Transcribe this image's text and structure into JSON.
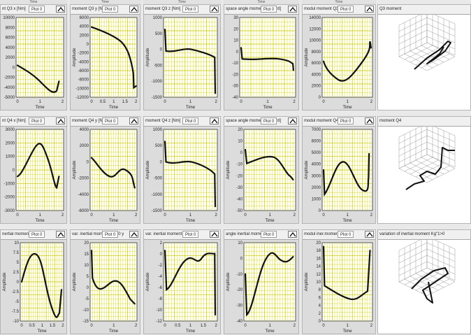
{
  "top_strip": [
    "Time",
    "Time",
    "Time",
    "Time",
    "Time"
  ],
  "plot_button_default": "Plot 0",
  "panels": [
    {
      "id": "q3x",
      "title": "nt Q3 x [Nm]",
      "plot": "Plot 0",
      "xlabel": "Time",
      "ylabel": "",
      "yticks": [
        "10000",
        "8000",
        "6000",
        "4000",
        "2000",
        "0",
        "-2000",
        "-4000",
        "-5000"
      ],
      "xticks": [
        "0",
        "1",
        "2"
      ]
    },
    {
      "id": "q3y",
      "title": "moment Q3 y [Nm]",
      "plot": "Plot 0",
      "xlabel": "Time",
      "ylabel": "Amplitude",
      "yticks": [
        "6000",
        "4000",
        "2000",
        "0",
        "-2000",
        "-4000",
        "-6000",
        "-8000",
        "-10000",
        "-12000"
      ],
      "xticks": [
        "0",
        "0.5",
        "1",
        "1.5",
        "2"
      ]
    },
    {
      "id": "q3z",
      "title": "moment Q3 z [Nm]",
      "plot": "Plot 0",
      "xlabel": "Time",
      "ylabel": "Amplitude",
      "yticks": [
        "1000",
        "500",
        "0",
        "-500",
        "-1000",
        "-1500"
      ],
      "xticks": [
        "0",
        "1",
        "2"
      ]
    },
    {
      "id": "q3ang",
      "title": "space angle moment Q3 [grd]",
      "plot": "Plot 0",
      "xlabel": "Time",
      "ylabel": "",
      "yticks": [
        "30",
        "20",
        "10",
        "0",
        "-10",
        "-20",
        "-30",
        "-40"
      ],
      "xticks": [
        "0",
        "1",
        "2"
      ]
    },
    {
      "id": "q3mod",
      "title": "modul moment Q3 [Nm]",
      "plot": "Plot 0",
      "xlabel": "Time",
      "ylabel": "Amplitude",
      "yticks": [
        "14000",
        "12000",
        "10000",
        "8000",
        "6000",
        "4000",
        "2000",
        "0"
      ],
      "xticks": [
        "0",
        "1",
        "2"
      ]
    },
    {
      "id": "q4x",
      "title": "nt Q4 x [Nm]",
      "plot": "Plot 0",
      "xlabel": "Time",
      "ylabel": "",
      "yticks": [
        "3000",
        "2000",
        "1000",
        "0",
        "-1000",
        "-2000",
        "-3000"
      ],
      "xticks": [
        "0",
        "1",
        "2"
      ]
    },
    {
      "id": "q4y",
      "title": "moment Q4 y [Nm]",
      "plot": "Plot 0",
      "xlabel": "Time",
      "ylabel": "Amplitude",
      "yticks": [
        "4000",
        "2000",
        "0",
        "-2000",
        "-4000",
        "-6000"
      ],
      "xticks": [
        "0",
        "1",
        "2"
      ]
    },
    {
      "id": "q4z",
      "title": "moment Q4 z [Nm]",
      "plot": "Plot 0",
      "xlabel": "Time",
      "ylabel": "Amplitude",
      "yticks": [
        "1000",
        "500",
        "0",
        "-500",
        "-1000",
        "-1500"
      ],
      "xticks": [
        "0",
        "1",
        "2"
      ]
    },
    {
      "id": "q4ang",
      "title": "space angle moment Q4 [grd]",
      "plot": "Plot 0",
      "xlabel": "Time",
      "ylabel": "Amplitude",
      "yticks": [
        "20",
        "10",
        "0",
        "-10",
        "-20",
        "-30",
        "-40",
        "-50"
      ],
      "xticks": [
        "0",
        "1",
        "2"
      ]
    },
    {
      "id": "q4mod",
      "title": "modul moment Q4 [Nm]",
      "plot": "Plot 0",
      "xlabel": "Time",
      "ylabel": "Amplitude",
      "yticks": [
        "7000",
        "6000",
        "5000",
        "4000",
        "3000",
        "2000",
        "1000",
        "0"
      ],
      "xticks": [
        "0",
        "1",
        "2"
      ]
    },
    {
      "id": "kx",
      "title": "nertial moment Kgi>0 x",
      "plot": "Plot 0",
      "xlabel": "Time",
      "ylabel": "Amplitude",
      "yticks": [
        "10",
        "7.5",
        "5",
        "2.5",
        "0",
        "-2.5",
        "-5",
        "-7.5",
        "-10"
      ],
      "xticks": [
        "0",
        "0.5",
        "1",
        "1.5",
        "2"
      ]
    },
    {
      "id": "ky",
      "title": "var. inertial moment Kgi>0 y",
      "plot": "Plot 0",
      "xlabel": "Time",
      "ylabel": "Amplitude",
      "yticks": [
        "20",
        "15",
        "10",
        "5",
        "0",
        "-5",
        "-10",
        "-15"
      ],
      "xticks": [
        "0",
        "1",
        "2"
      ]
    },
    {
      "id": "kz",
      "title": "var. inertial moment Kgi>0 z",
      "plot": "Plot 0",
      "xlabel": "Time",
      "ylabel": "Amplitude",
      "yticks": [
        "2",
        "0",
        "-2",
        "-4",
        "-6",
        "-8",
        "-10",
        "-12"
      ],
      "xticks": [
        "0",
        "0.5",
        "1",
        "1.5",
        "2"
      ]
    },
    {
      "id": "kang",
      "title": "angle inertial moment [grd]",
      "plot": "Plot 0",
      "xlabel": "Time",
      "ylabel": "Amplitude",
      "yticks": [
        "10",
        "0",
        "-10",
        "-20",
        "-30",
        "-40"
      ],
      "xticks": [
        "0",
        "1",
        "2"
      ]
    },
    {
      "id": "kmod",
      "title": "modul iner.moment Kg1>0",
      "plot": "Plot 0",
      "xlabel": "Time",
      "ylabel": "Amplitude",
      "yticks": [
        "20",
        "18",
        "16",
        "14",
        "12",
        "10",
        "8",
        "6",
        "4",
        "2",
        "0"
      ],
      "xticks": [
        "0",
        "1",
        "2"
      ]
    }
  ],
  "panels3d": [
    {
      "id": "q3-3d",
      "title": "Q3 moment"
    },
    {
      "id": "q4-3d",
      "title": "moment Q4"
    },
    {
      "id": "k-3d",
      "title": "variation of inertial moment Kg\"1>0"
    }
  ],
  "curve_color": "#111111",
  "grid_color": "#c8c800",
  "plot_bg": "#fffff4"
}
